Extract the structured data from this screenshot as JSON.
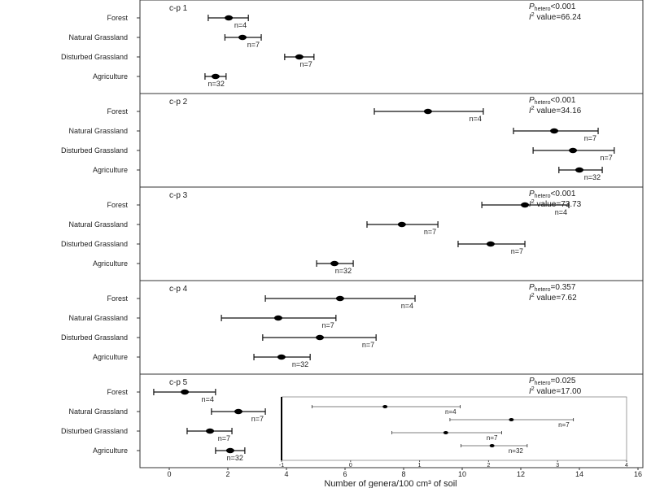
{
  "chart_data": {
    "type": "forest",
    "xlabel": "Number of genera/100 cm³ of soil",
    "xlim": [
      -1,
      16
    ],
    "xticks": [
      "0",
      "2",
      "4",
      "6",
      "8",
      "10",
      "12",
      "14",
      "16"
    ],
    "categories": [
      "Forest",
      "Natural Grassland",
      "Disturbed Grassland",
      "Agriculture"
    ],
    "n_labels": [
      "n=4",
      "n=7",
      "n=7",
      "n=32"
    ],
    "stat_p_prefix": "P",
    "stat_p_sub": "hetero",
    "stat_i_prefix": "I",
    "stat_i_sup": "2",
    "stat_i_suffix": " value=",
    "panels": [
      {
        "title": "c-p 1",
        "p_text": "<0.001",
        "i2": "66.24",
        "mean": [
          2.03,
          2.5,
          4.44,
          1.58
        ],
        "lo": [
          1.33,
          1.9,
          3.94,
          1.22
        ],
        "hi": [
          2.7,
          3.14,
          4.94,
          1.94
        ]
      },
      {
        "title": "c-p 2",
        "p_text": "<0.001",
        "i2": "34.16",
        "mean": [
          8.83,
          13.14,
          13.78,
          14.0
        ],
        "lo": [
          7.0,
          11.75,
          12.42,
          13.3
        ],
        "hi": [
          10.72,
          14.64,
          15.19,
          14.78
        ]
      },
      {
        "title": "c-p 3",
        "p_text": "<0.001",
        "i2": "73.73",
        "mean": [
          12.14,
          7.94,
          10.97,
          5.64
        ],
        "lo": [
          10.67,
          6.75,
          9.86,
          5.03
        ],
        "hi": [
          13.64,
          9.17,
          12.14,
          6.28
        ]
      },
      {
        "title": "c-p 4",
        "p_text": "=0.357",
        "i2": "7.62",
        "mean": [
          5.83,
          3.72,
          5.14,
          3.83
        ],
        "lo": [
          3.28,
          1.78,
          3.19,
          2.89
        ],
        "hi": [
          8.39,
          5.69,
          7.06,
          4.81
        ]
      },
      {
        "title": "c-p 5",
        "p_text": "=0.025",
        "i2": "17.00",
        "mean": [
          0.53,
          2.36,
          1.39,
          2.08
        ],
        "lo": [
          -0.53,
          1.44,
          0.61,
          1.58
        ],
        "hi": [
          1.58,
          3.28,
          2.14,
          2.58
        ]
      }
    ],
    "inset": {
      "xlim": [
        -1,
        4
      ],
      "xticks": [
        "-1",
        "0",
        "1",
        "2",
        "3",
        "4"
      ],
      "mean": [
        0.5,
        2.33,
        1.38,
        2.05
      ],
      "lo": [
        -0.56,
        1.44,
        0.6,
        1.6
      ],
      "hi": [
        1.59,
        3.23,
        2.19,
        2.56
      ]
    }
  }
}
